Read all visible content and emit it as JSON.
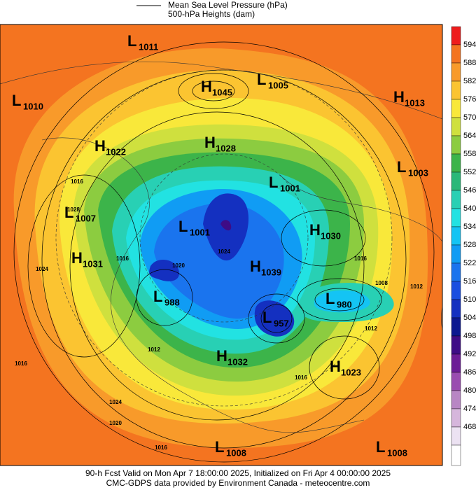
{
  "legend": {
    "line_label": "Mean Sea Level Pressure (hPa)",
    "fill_label": "500-hPa Heights (dam)"
  },
  "colorbar": {
    "colors": [
      "#ee1c1c",
      "#f47420",
      "#f89a2a",
      "#fbc431",
      "#f9e83a",
      "#cfe03e",
      "#8ccc40",
      "#3cb44a",
      "#2ab878",
      "#28d0b4",
      "#22e2e2",
      "#14c4f4",
      "#109cf4",
      "#1a74ee",
      "#1a4ee0",
      "#1430c0",
      "#0c1890",
      "#3e0c86",
      "#6c1c96",
      "#9a4cb0",
      "#b886c4",
      "#d6b6dc",
      "#ece2f2"
    ],
    "ticks": [
      594,
      588,
      582,
      576,
      570,
      564,
      558,
      552,
      546,
      540,
      534,
      528,
      522,
      516,
      510,
      504,
      498,
      492,
      486,
      480,
      474,
      468
    ]
  },
  "centers": [
    {
      "type": "L",
      "value": 1011
    },
    {
      "type": "L",
      "value": 1010
    },
    {
      "type": "H",
      "value": 1045
    },
    {
      "type": "L",
      "value": 1005
    },
    {
      "type": "H",
      "value": 1013
    },
    {
      "type": "H",
      "value": 1022
    },
    {
      "type": "H",
      "value": 1028
    },
    {
      "type": "L",
      "value": 1003
    },
    {
      "type": "L",
      "value": 1001
    },
    {
      "type": "L",
      "value": 1007
    },
    {
      "type": "L",
      "value": 1001
    },
    {
      "type": "H",
      "value": 1030
    },
    {
      "type": "H",
      "value": 1031
    },
    {
      "type": "H",
      "value": 1039
    },
    {
      "type": "L",
      "value": 988
    },
    {
      "type": "L",
      "value": 980
    },
    {
      "type": "L",
      "value": 957
    },
    {
      "type": "H",
      "value": 1032
    },
    {
      "type": "H",
      "value": 1023
    },
    {
      "type": "L",
      "value": 1008
    },
    {
      "type": "L",
      "value": 1008
    }
  ],
  "contour_labels": [
    1016,
    1024,
    1028,
    1016,
    1024,
    1020,
    1016,
    1012,
    1016,
    1008,
    1012,
    1012,
    1016,
    1020,
    1024,
    1016
  ],
  "footer": [
    "90-h Fcst Valid on Mon Apr  7 18:00:00 2025, Initialized on Fri Apr  4 00:00:00 2025",
    "CMC-GDPS data provided by Environment Canada - meteocentre.com"
  ]
}
